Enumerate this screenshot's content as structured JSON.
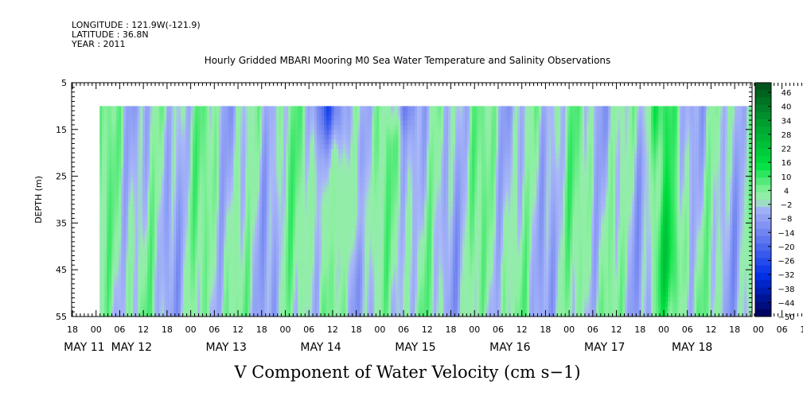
{
  "meta": {
    "longitude": "LONGITUDE : 121.9W(-121.9)",
    "latitude": "LATITUDE : 36.8N",
    "year": "YEAR : 2011"
  },
  "chart_data": {
    "type": "heatmap",
    "title": "Hourly Gridded MBARI Mooring M0 Sea Water Temperature and Salinity Observations",
    "xlabel": "V Component of Water Velocity (cm s−1)",
    "ylabel": "DEPTH (m)",
    "y_ticks": [
      "5",
      "15",
      "25",
      "35",
      "45",
      "55"
    ],
    "y_range": [
      5,
      55
    ],
    "y_inverted": true,
    "hour_ticks": [
      "18",
      "00",
      "06",
      "12",
      "18",
      "00",
      "06",
      "12",
      "18",
      "00",
      "06",
      "12",
      "18",
      "00",
      "06",
      "12",
      "18",
      "00",
      "06",
      "12",
      "18",
      "00",
      "06",
      "12",
      "18",
      "00",
      "06",
      "12",
      "18",
      "00",
      "06",
      "12",
      "18"
    ],
    "date_labels": [
      {
        "label": "MAY 11",
        "tick_index": 0.5
      },
      {
        "label": "MAY 12",
        "tick_index": 2.5
      },
      {
        "label": "MAY 13",
        "tick_index": 6.5
      },
      {
        "label": "MAY 14",
        "tick_index": 10.5
      },
      {
        "label": "MAY 15",
        "tick_index": 14.5
      },
      {
        "label": "MAY 16",
        "tick_index": 18.5
      },
      {
        "label": "MAY 17",
        "tick_index": 22.5
      },
      {
        "label": "MAY 18",
        "tick_index": 26.2
      }
    ],
    "data_extent": {
      "x_start_tick": 1.15,
      "x_end_tick": 32.4,
      "depth_top": 10,
      "depth_bottom": 55
    },
    "colorbar": {
      "labels": [
        "46",
        "40",
        "34",
        "28",
        "22",
        "16",
        "10",
        "4",
        "−2",
        "−8",
        "−14",
        "−20",
        "−26",
        "−32",
        "−38",
        "−44",
        "−50"
      ],
      "levels": 32,
      "colors_top_to_bottom": [
        "#004d1a",
        "#00e040",
        "#90f0a0",
        "#a9b8f8",
        "#0030e8",
        "#000055"
      ]
    },
    "grid": false,
    "legend": "right"
  }
}
